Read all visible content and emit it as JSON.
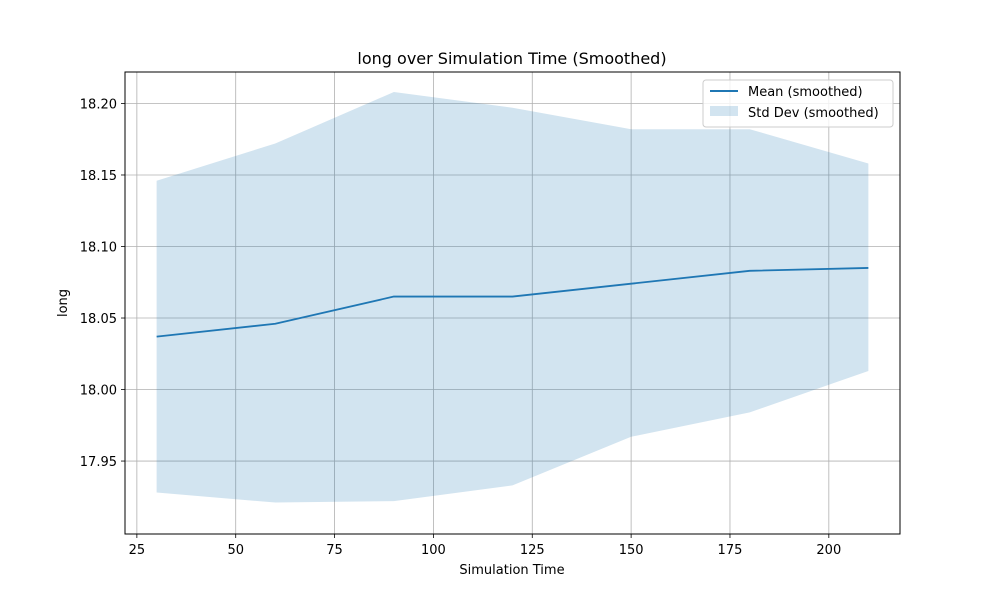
{
  "chart_data": {
    "type": "line",
    "title": "long over Simulation Time (Smoothed)",
    "xlabel": "Simulation Time",
    "ylabel": "long",
    "xlim": [
      22,
      218
    ],
    "ylim": [
      17.899,
      18.222
    ],
    "xticks": [
      25,
      50,
      75,
      100,
      125,
      150,
      175,
      200
    ],
    "yticks": [
      17.95,
      18.0,
      18.05,
      18.1,
      18.15,
      18.2
    ],
    "ytick_labels": [
      "17.95",
      "18.00",
      "18.05",
      "18.10",
      "18.15",
      "18.20"
    ],
    "grid": true,
    "legend_position": "top-right",
    "x": [
      30,
      60,
      90,
      120,
      150,
      180,
      210
    ],
    "series": [
      {
        "name": "Mean (smoothed)",
        "kind": "line",
        "color": "#1f77b4",
        "values": [
          18.037,
          18.046,
          18.065,
          18.065,
          18.074,
          18.083,
          18.085
        ]
      },
      {
        "name": "Std Dev (smoothed)",
        "kind": "band",
        "color": "#1f77b4",
        "opacity": 0.2,
        "lower": [
          17.928,
          17.921,
          17.922,
          17.933,
          17.967,
          17.984,
          18.013
        ],
        "upper": [
          18.146,
          18.172,
          18.208,
          18.197,
          18.182,
          18.182,
          18.158
        ]
      }
    ]
  }
}
